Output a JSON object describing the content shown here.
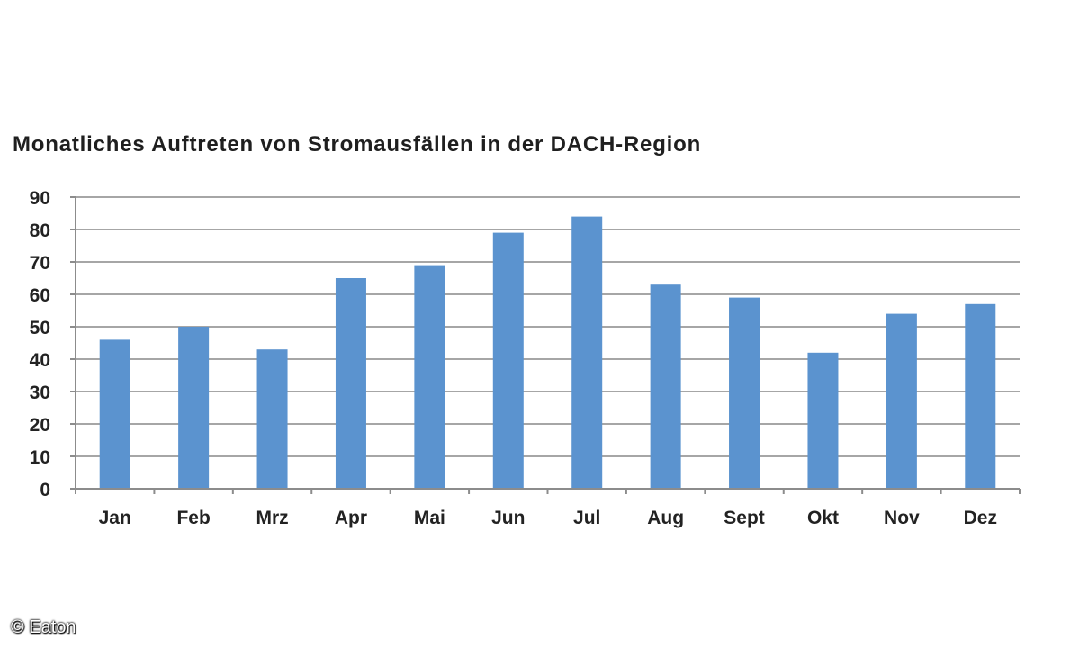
{
  "credit": "© Eaton",
  "chart_data": {
    "type": "bar",
    "title": "Monatliches Auftreten von Stromausfällen in der DACH-Region",
    "xlabel": "",
    "ylabel": "",
    "categories": [
      "Jan",
      "Feb",
      "Mrz",
      "Apr",
      "Mai",
      "Jun",
      "Jul",
      "Aug",
      "Sept",
      "Okt",
      "Nov",
      "Dez"
    ],
    "values": [
      46,
      50,
      43,
      65,
      69,
      79,
      84,
      63,
      59,
      42,
      54,
      57
    ],
    "ylim": [
      0,
      90
    ],
    "yticks": [
      0,
      10,
      20,
      30,
      40,
      50,
      60,
      70,
      80,
      90
    ],
    "grid": true,
    "legend": "none",
    "colors": {
      "bar": "#5b93cf",
      "grid": "#a6a6a6",
      "axis": "#8c8c8c"
    }
  }
}
